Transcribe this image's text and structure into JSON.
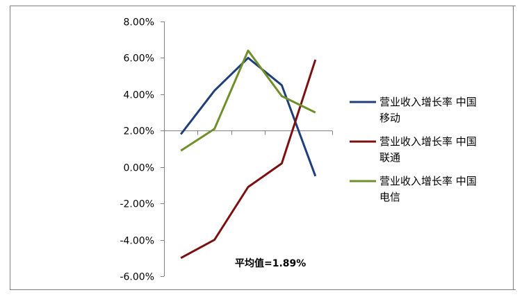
{
  "chart_data": {
    "type": "line",
    "title": "",
    "xlabel": "",
    "ylabel": "",
    "ylim": [
      -0.06,
      0.08
    ],
    "y_tick_labels": [
      "8.00%",
      "6.00%",
      "4.00%",
      "2.00%",
      "0.00%",
      "-2.00%",
      "-4.00%",
      "-6.00%"
    ],
    "y_tick_values": [
      0.08,
      0.06,
      0.04,
      0.02,
      0.0,
      -0.02,
      -0.04,
      -0.06
    ],
    "x_axis_crosses_at": 0.02,
    "grid": false,
    "legend_position": "right",
    "categories": [
      "",
      "",
      "",
      "",
      ""
    ],
    "series": [
      {
        "name": "营业收入增长率 中国移动",
        "name_lines": [
          "营业收入增长率 中国",
          "移动"
        ],
        "color": "#1f3e7a",
        "values": [
          0.018,
          0.042,
          0.06,
          0.045,
          -0.005
        ]
      },
      {
        "name": "营业收入增长率 中国联通",
        "name_lines": [
          "营业收入增长率 中国",
          "联通"
        ],
        "color": "#7b1010",
        "values": [
          -0.05,
          -0.04,
          -0.011,
          0.002,
          0.059
        ]
      },
      {
        "name": "营业收入增长率 中国电信",
        "name_lines": [
          "营业收入增长率 中国",
          "电信"
        ],
        "color": "#6f8f2b",
        "values": [
          0.009,
          0.021,
          0.064,
          0.039,
          0.03
        ]
      }
    ],
    "annotations": [
      {
        "text": "平均值=1.89%"
      }
    ]
  }
}
